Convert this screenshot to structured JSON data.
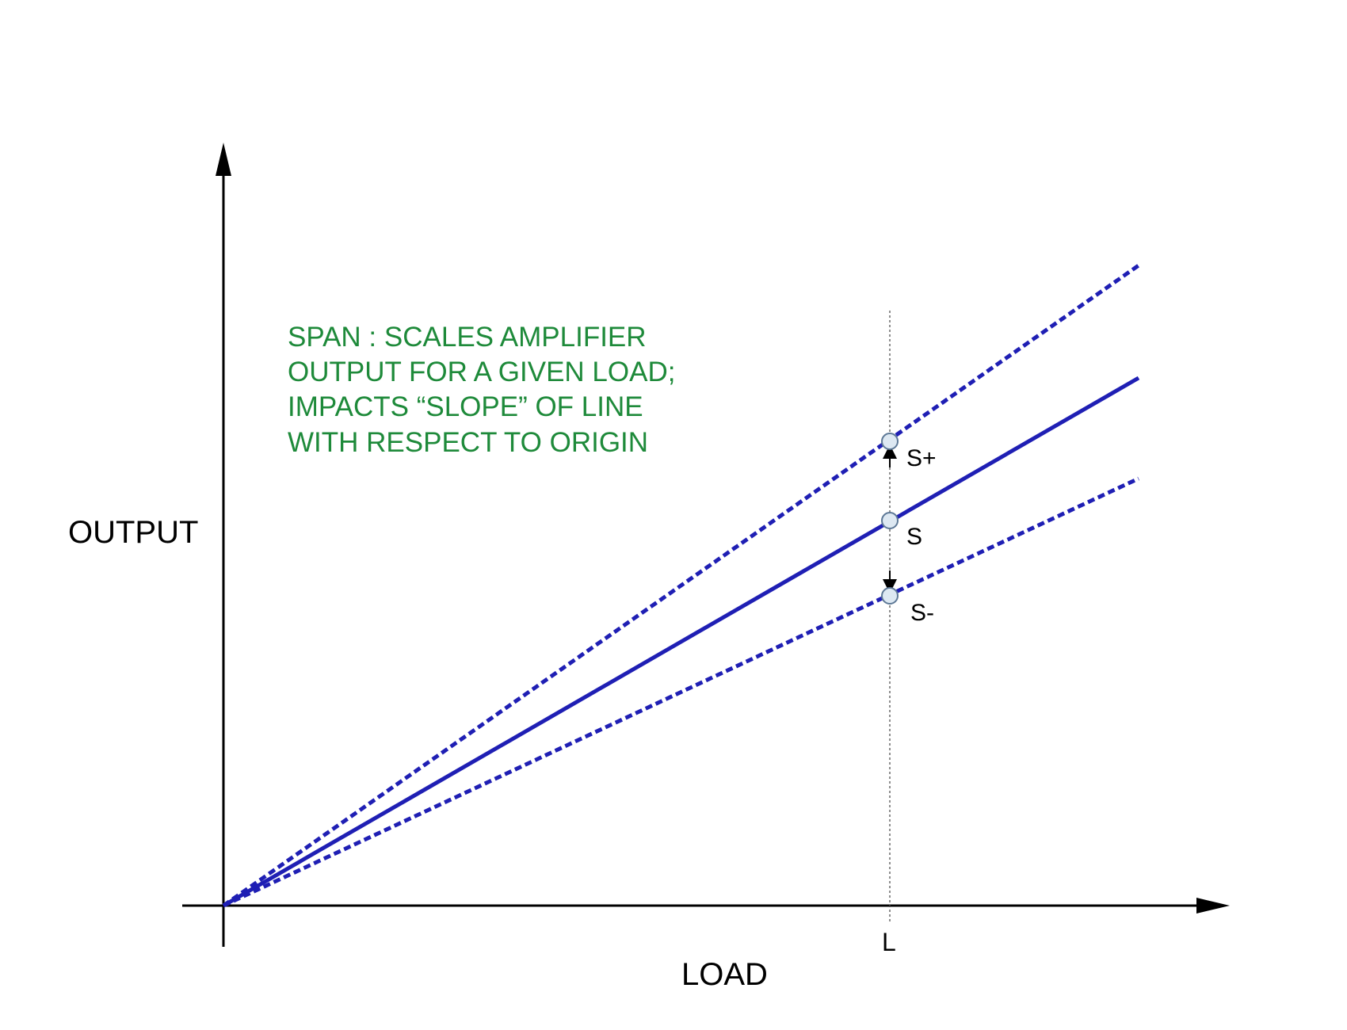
{
  "diagram": {
    "y_axis_label": "OUTPUT",
    "x_axis_label": "LOAD",
    "load_marker_label": "L",
    "note_lines": [
      "SPAN : SCALES AMPLIFIER",
      "OUTPUT FOR A GIVEN LOAD;",
      "IMPACTS “SLOPE” OF LINE",
      "WITH RESPECT TO ORIGIN"
    ],
    "points": {
      "s_plus": "S+",
      "s": "S",
      "s_minus": "S-"
    },
    "colors": {
      "line": "#1f1fb4",
      "note": "#1e8a3a",
      "axis": "#000000",
      "point_fill": "#dde8f2",
      "point_stroke": "#5d7896"
    }
  }
}
